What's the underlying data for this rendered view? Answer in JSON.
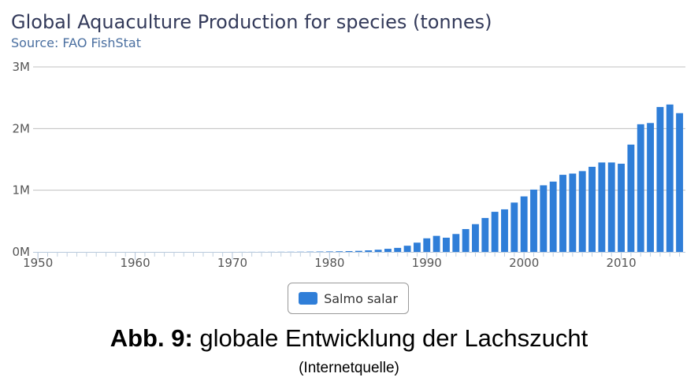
{
  "chart_data": {
    "type": "bar",
    "title": "Global Aquaculture Production for species (tonnes)",
    "subtitle": "Source: FAO FishStat",
    "ylim": [
      0,
      3000000
    ],
    "y_ticks": [
      {
        "value": 0,
        "label": "0M"
      },
      {
        "value": 1000000,
        "label": "1M"
      },
      {
        "value": 2000000,
        "label": "2M"
      },
      {
        "value": 3000000,
        "label": "3M"
      }
    ],
    "x_ticks": [
      1950,
      1960,
      1970,
      1980,
      1990,
      2000,
      2010
    ],
    "grid": "horizontal",
    "legend_position": "bottom-center",
    "bar_color": "#2f7ed8",
    "series": [
      {
        "name": "Salmo salar",
        "x": [
          1950,
          1951,
          1952,
          1953,
          1954,
          1955,
          1956,
          1957,
          1958,
          1959,
          1960,
          1961,
          1962,
          1963,
          1964,
          1965,
          1966,
          1967,
          1968,
          1969,
          1970,
          1971,
          1972,
          1973,
          1974,
          1975,
          1976,
          1977,
          1978,
          1979,
          1980,
          1981,
          1982,
          1983,
          1984,
          1985,
          1986,
          1987,
          1988,
          1989,
          1990,
          1991,
          1992,
          1993,
          1994,
          1995,
          1996,
          1997,
          1998,
          1999,
          2000,
          2001,
          2002,
          2003,
          2004,
          2005,
          2006,
          2007,
          2008,
          2009,
          2010,
          2011,
          2012,
          2013,
          2014,
          2015,
          2016
        ],
        "values": [
          0,
          0,
          0,
          0,
          0,
          0,
          0,
          0,
          0,
          0,
          0,
          0,
          0,
          0,
          0,
          0,
          0,
          0,
          0,
          0,
          300,
          800,
          1000,
          1300,
          1500,
          2000,
          2500,
          3200,
          4500,
          6000,
          7500,
          10000,
          13000,
          17000,
          25000,
          35000,
          50000,
          65000,
          100000,
          150000,
          220000,
          260000,
          230000,
          290000,
          370000,
          450000,
          550000,
          650000,
          690000,
          800000,
          900000,
          1010000,
          1080000,
          1140000,
          1250000,
          1270000,
          1310000,
          1380000,
          1450000,
          1450000,
          1430000,
          1740000,
          2070000,
          2090000,
          2350000,
          2390000,
          2250000
        ]
      }
    ]
  },
  "caption": {
    "bold": "Abb. 9:",
    "text": " globale Entwicklung der Lachszucht",
    "source": "(Internetquelle)"
  }
}
